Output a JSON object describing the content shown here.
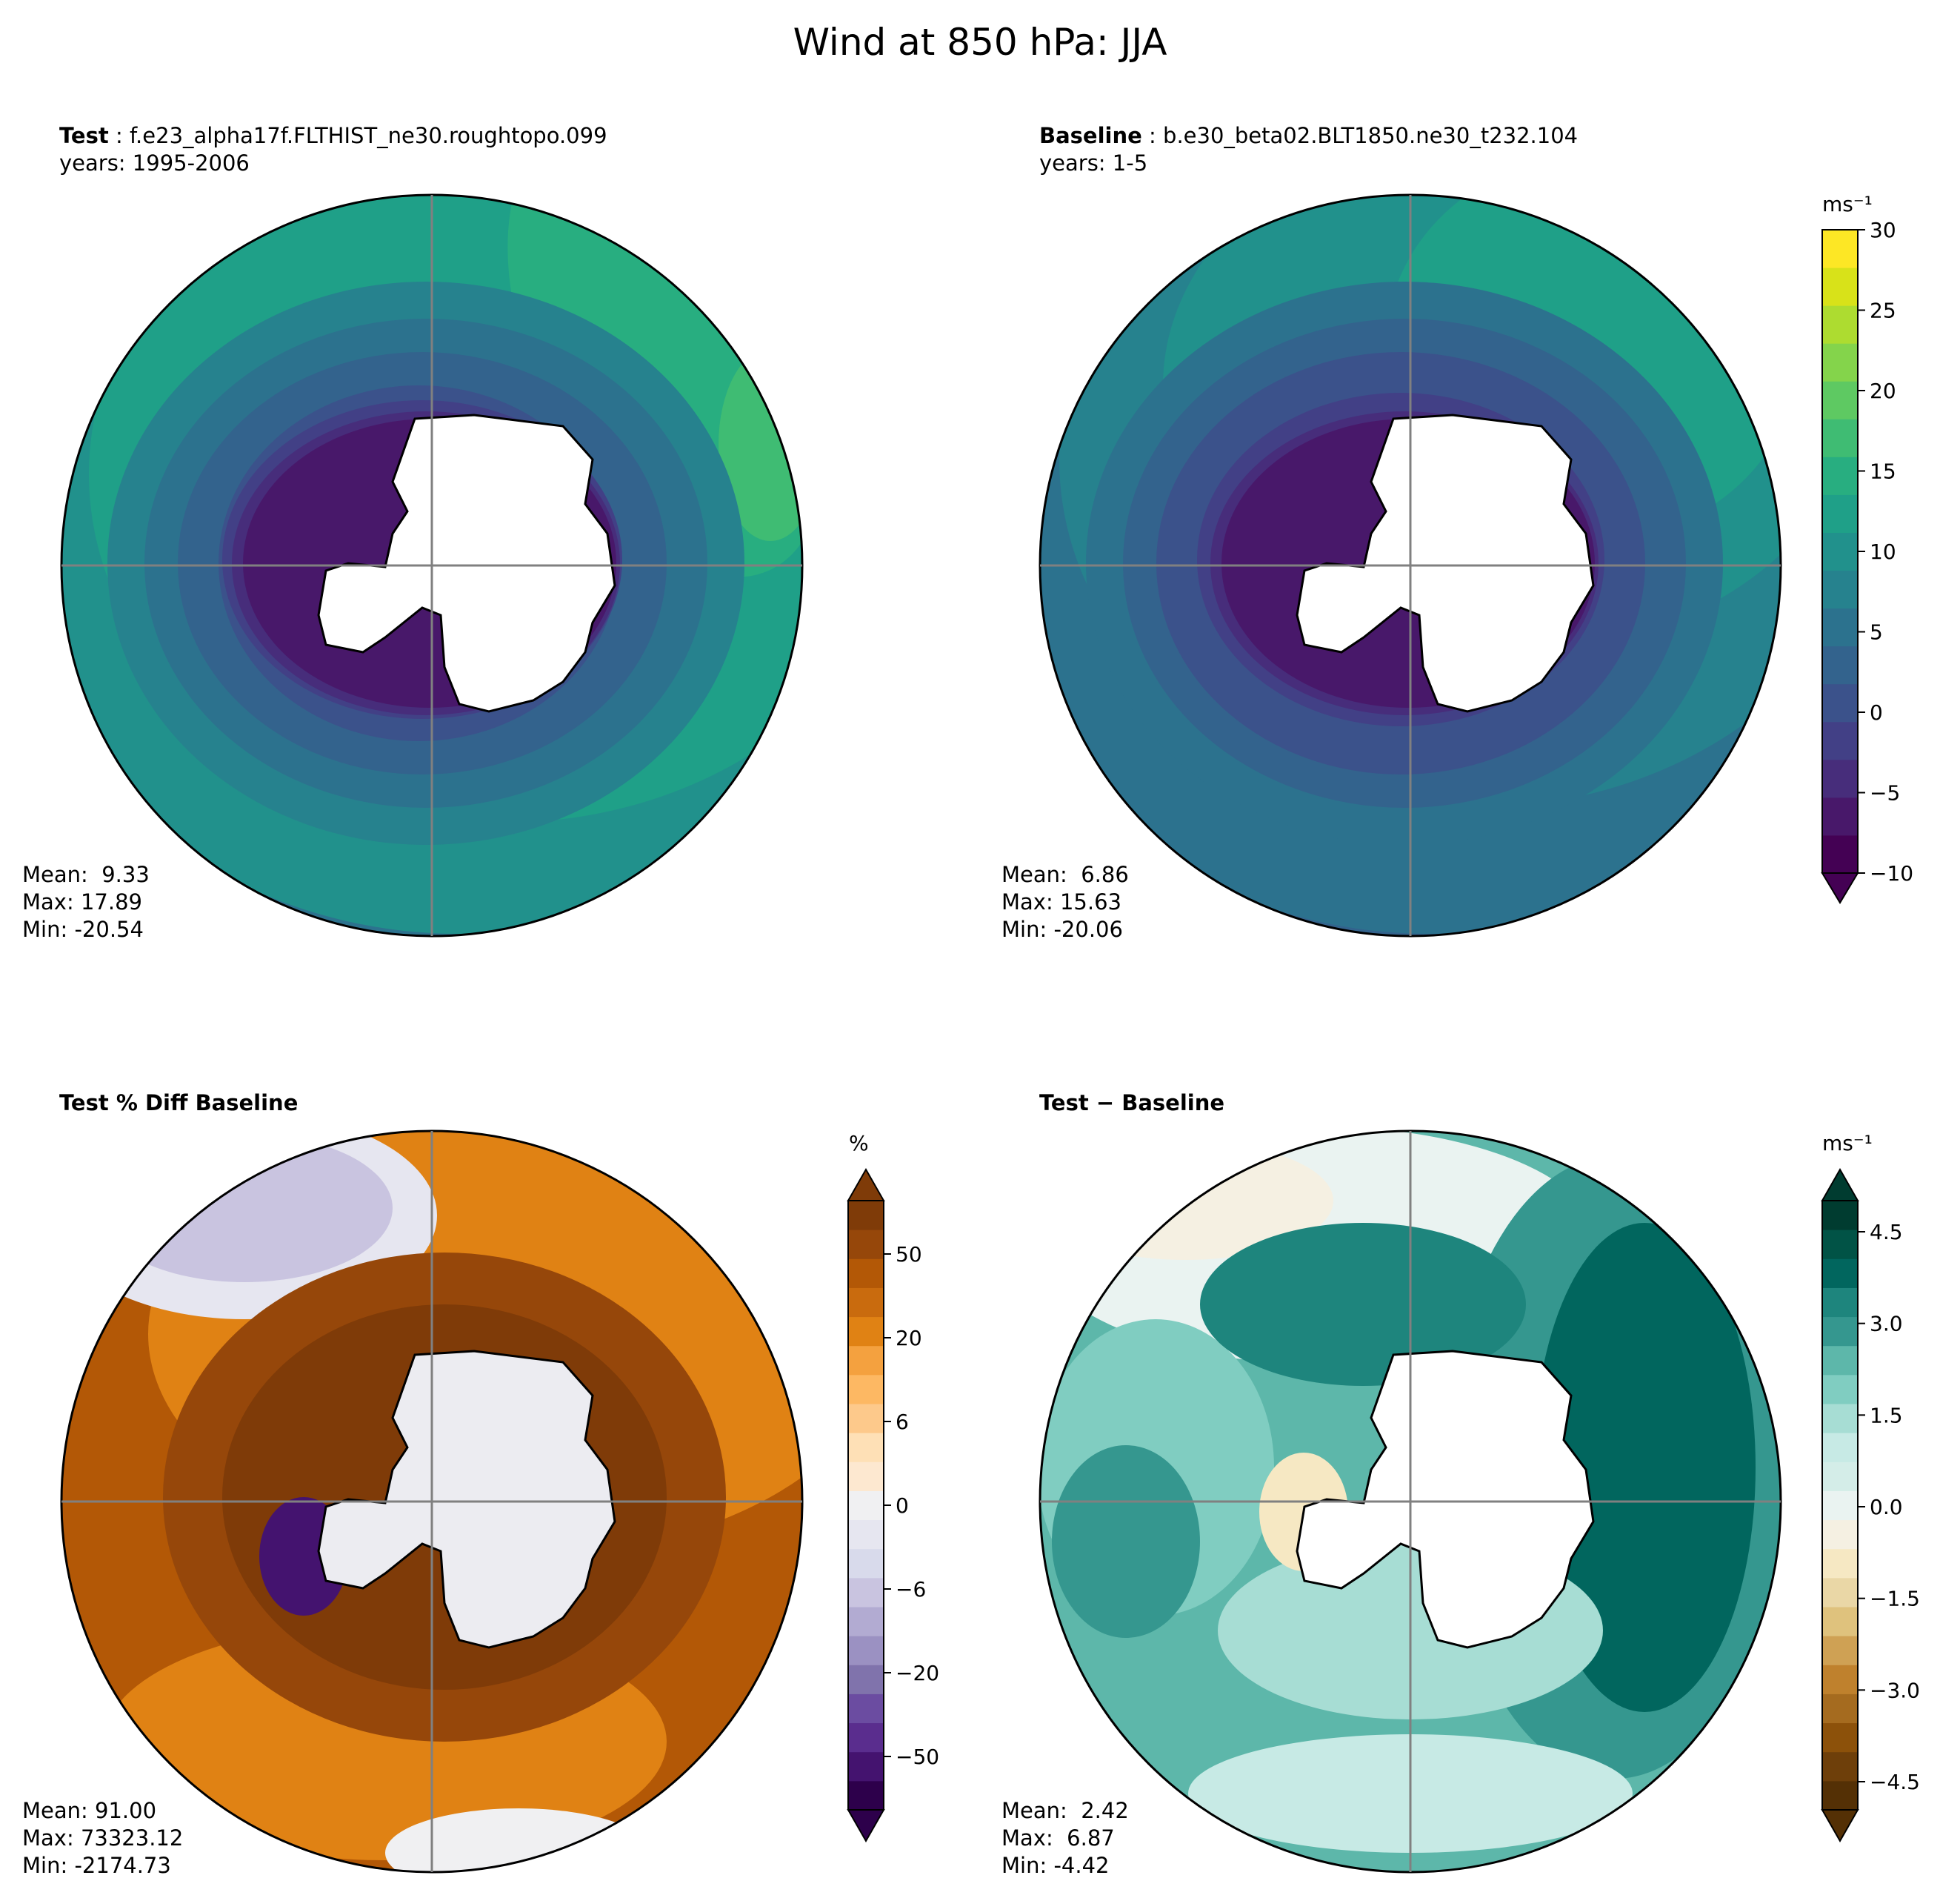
{
  "figure": {
    "title": "Wind at 850 hPa: JJA"
  },
  "panels": {
    "test": {
      "label": "Test",
      "case": "f.e23_alpha17f.FLTHIST_ne30.roughtopo.099",
      "years": "years: 1995-2006",
      "stats": {
        "mean": "Mean:  9.33",
        "max": "Max: 17.89",
        "min": "Min: -20.54"
      }
    },
    "baseline": {
      "label": "Baseline",
      "case": "b.e30_beta02.BLT1850.ne30_t232.104",
      "years": "years: 1-5",
      "stats": {
        "mean": "Mean:  6.86",
        "max": "Max: 15.63",
        "min": "Min: -20.06"
      }
    },
    "pctdiff": {
      "title": "Test % Diff Baseline",
      "stats": {
        "mean": "Mean: 91.00",
        "max": "Max: 73323.12",
        "min": "Min: -2174.73"
      }
    },
    "diff": {
      "title": "Test − Baseline",
      "stats": {
        "mean": "Mean:  2.42",
        "max": "Max:  6.87",
        "min": "Min: -4.42"
      }
    }
  },
  "colorbars": {
    "wind": {
      "unit": "ms⁻¹",
      "ticks": [
        "30",
        "25",
        "20",
        "15",
        "10",
        "5",
        "0",
        "−5",
        "−10"
      ],
      "colors": [
        "#440154",
        "#48186a",
        "#472d7b",
        "#424086",
        "#3b528b",
        "#33638d",
        "#2c728e",
        "#26828e",
        "#21918c",
        "#1fa088",
        "#28ae80",
        "#3fbc73",
        "#5ec962",
        "#84d44b",
        "#addc30",
        "#d8e219",
        "#fde725"
      ]
    },
    "pct": {
      "unit": "%",
      "ticks": [
        "50",
        "20",
        "6",
        "0",
        "−6",
        "−20",
        "−50"
      ],
      "colors": [
        "#2d004b",
        "#44136f",
        "#5a2d8e",
        "#6b4ca1",
        "#8073ac",
        "#9b91c2",
        "#b2abd2",
        "#c9c4e0",
        "#d8daeb",
        "#e6e6f0",
        "#f0f0f2",
        "#fde8d0",
        "#fee0b6",
        "#fdc98b",
        "#fdb863",
        "#f4a13f",
        "#e08214",
        "#c96b0e",
        "#b35806",
        "#96470a",
        "#7f3b08"
      ]
    },
    "diff": {
      "unit": "ms⁻¹",
      "ticks": [
        "4.5",
        "3.0",
        "1.5",
        "0.0",
        "−1.5",
        "−3.0",
        "−4.5"
      ],
      "colors": [
        "#543005",
        "#6e3f0a",
        "#8c510a",
        "#a56b1f",
        "#bf812d",
        "#cfa154",
        "#dfc27d",
        "#ead7a6",
        "#f6e8c3",
        "#f5f0e2",
        "#eaf3f1",
        "#d4ede8",
        "#c7eae5",
        "#a7ddd4",
        "#80cdc1",
        "#5db7aa",
        "#35978f",
        "#1e857d",
        "#01665e",
        "#015346",
        "#003c30"
      ]
    }
  }
}
